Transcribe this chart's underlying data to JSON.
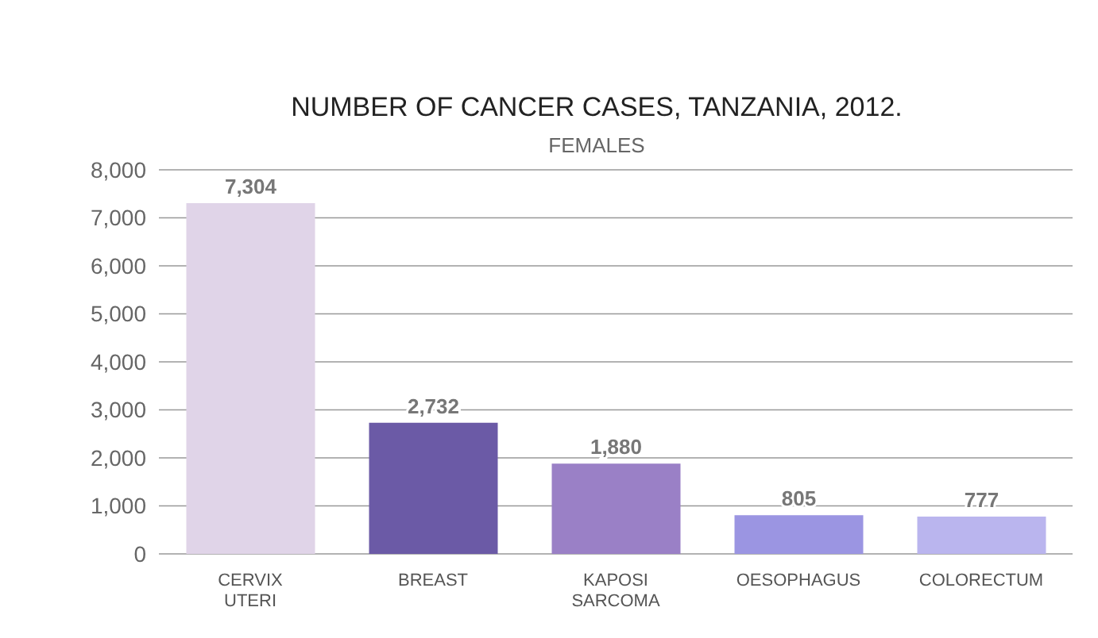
{
  "chart_data": {
    "type": "bar",
    "title": "NUMBER OF CANCER CASES, TANZANIA, 2012.",
    "subtitle": "FEMALES",
    "categories": [
      "CERVIX UTERI",
      "BREAST",
      "KAPOSI SARCOMA",
      "OESOPHAGUS",
      "COLORECTUM"
    ],
    "values": [
      7304,
      2732,
      1880,
      805,
      777
    ],
    "value_labels": [
      "7,304",
      "2,732",
      "1,880",
      "805",
      "777"
    ],
    "colors": [
      "#e0d4e8",
      "#6b5aa6",
      "#9a80c6",
      "#9b95e2",
      "#bab5ee"
    ],
    "ylim": [
      0,
      8000
    ],
    "yticks": [
      0,
      {
        "value": 1000,
        "label": "1,000"
      },
      {
        "value": 2000,
        "label": "2,000"
      },
      {
        "value": 3000,
        "label": "3,000"
      },
      {
        "value": 4000,
        "label": "4,000"
      },
      {
        "value": 5000,
        "label": "5,000"
      },
      {
        "value": 6000,
        "label": "6,000"
      },
      {
        "value": 7000,
        "label": "7,000"
      },
      {
        "value": 8000,
        "label": "8,000"
      }
    ],
    "grid": "y"
  }
}
